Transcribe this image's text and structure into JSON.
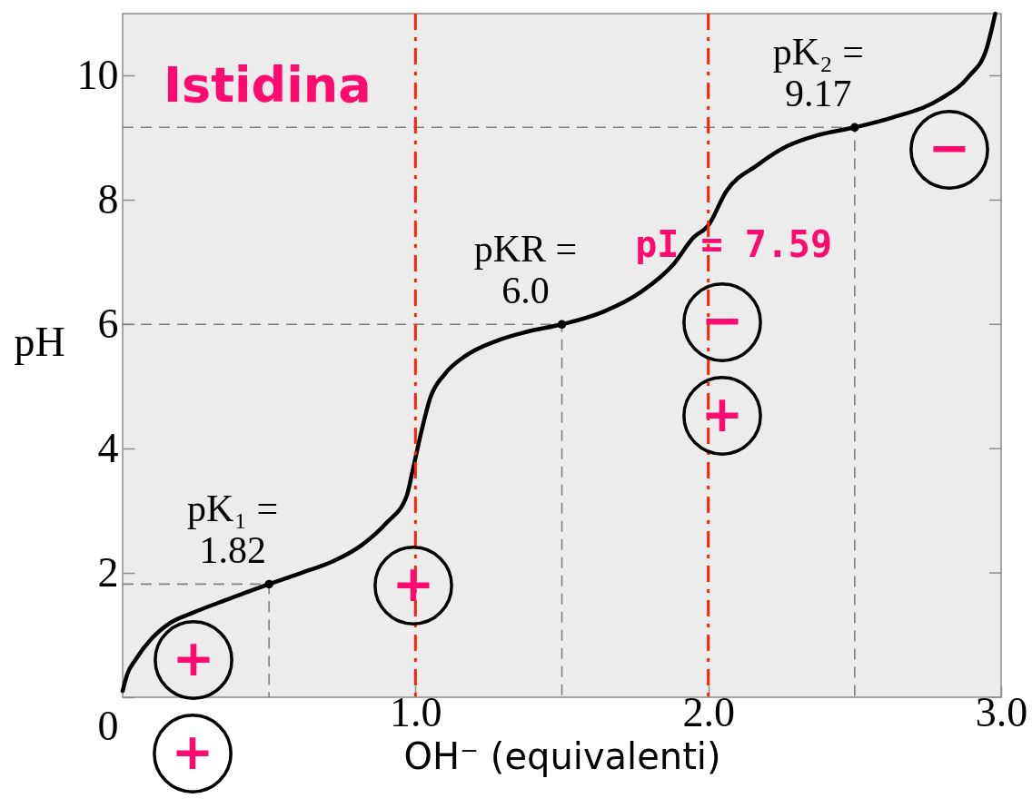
{
  "chart_data": {
    "type": "line",
    "title": "Istidina",
    "xlabel": "OH⁻ (equivalenti)",
    "ylabel": "pH",
    "xlim": [
      0,
      3
    ],
    "xticks": [
      {
        "value": 1,
        "label": "1.0"
      },
      {
        "value": 2,
        "label": "2.0"
      },
      {
        "value": 3,
        "label": "3.0"
      }
    ],
    "ylim": [
      0,
      11
    ],
    "yticks": [
      0,
      2,
      4,
      6,
      8,
      10
    ],
    "grid": false,
    "series": [
      {
        "color": "#808080",
        "line_style": "dashed",
        "x": [
          0,
          0.5,
          0.5
        ],
        "values": [
          1.82,
          1.82,
          0
        ]
      },
      {
        "color": "#808080",
        "line_style": "dashed",
        "x": [
          0,
          1.5,
          1.5
        ],
        "values": [
          6.0,
          6.0,
          0
        ]
      },
      {
        "color": "#808080",
        "line_style": "dashed",
        "x": [
          0,
          2.5,
          2.5
        ],
        "values": [
          9.17,
          9.17,
          0
        ]
      },
      {
        "color": "#000000",
        "line_style": "solid",
        "x": [
          0,
          0.015,
          0.045,
          0.1,
          0.16,
          0.24,
          0.35,
          0.5,
          0.61,
          0.72,
          0.82,
          0.9,
          0.97,
          0.99,
          1.02,
          1.05,
          1.1,
          1.17,
          1.28,
          1.38,
          1.5,
          1.64,
          1.77,
          1.88,
          1.95,
          2.0,
          2.06,
          2.17,
          2.27,
          2.37,
          2.5,
          2.63,
          2.79,
          2.89,
          2.95,
          2.98
        ],
        "values": [
          0.1,
          0.36,
          0.61,
          0.95,
          1.19,
          1.36,
          1.56,
          1.82,
          2.0,
          2.19,
          2.46,
          2.8,
          3.24,
          3.64,
          4.27,
          4.81,
          5.2,
          5.49,
          5.74,
          5.88,
          6.0,
          6.2,
          6.52,
          6.96,
          7.4,
          7.59,
          8.13,
          8.57,
          8.87,
          9.04,
          9.17,
          9.33,
          9.62,
          9.99,
          10.43,
          11.0
        ]
      },
      {
        "type": "scatter",
        "color": "#000000",
        "marker": "circle",
        "x": [
          0.5,
          1.5,
          2.5
        ],
        "values": [
          1.82,
          6.0,
          9.17
        ],
        "value_labels": [
          "pK₁ =\n1.82",
          "pKR =\n6.0",
          "pK₂ =\n9.17"
        ]
      }
    ],
    "ref_lines": [
      {
        "axis": "x",
        "value": 1,
        "color": "#ff2200",
        "line_style": "dashdot"
      },
      {
        "axis": "x",
        "value": 2,
        "color": "#ff2200",
        "line_style": "dashdot"
      }
    ],
    "annotations": [
      {
        "text": "pI = 7.59",
        "x": 2,
        "y": 7.59
      },
      "+",
      "+",
      "+",
      "−",
      "+",
      "−"
    ]
  }
}
